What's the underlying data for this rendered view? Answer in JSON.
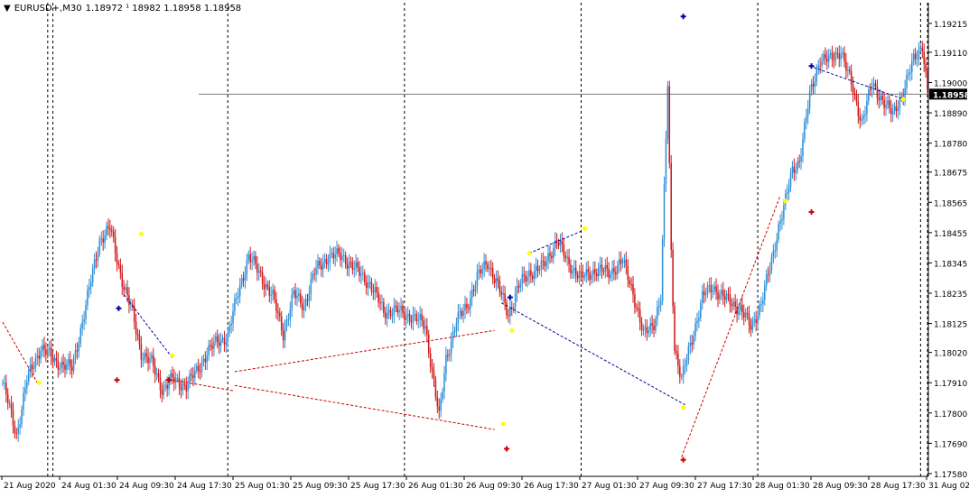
{
  "header": {
    "symbol_timeframe": "EURUSD+,M30",
    "ohlc": "1.18972 ¹ 18982 1.18958 1.18958"
  },
  "colors": {
    "bull": "#2f8fd8",
    "bear": "#d01818",
    "gridline": "#000000",
    "current_price_line": "#7a7a7a",
    "price_tag_bg": "#000000",
    "price_tag_text": "#ffffff",
    "signal_yellow": "#ffff00",
    "arrow_blue": "#0000a0",
    "arrow_red": "#cc0000"
  },
  "chart_data": {
    "type": "candlestick",
    "title": "EURUSD+,M30",
    "y_range": [
      1.1757,
      1.1929
    ],
    "y_ticks": [
      "1.19215",
      "1.19110",
      "1.19000",
      "1.18890",
      "1.18780",
      "1.18675",
      "1.18565",
      "1.18455",
      "1.18345",
      "1.18235",
      "1.18125",
      "1.18020",
      "1.17910",
      "1.17800",
      "1.17690",
      "1.17580"
    ],
    "current_price": "1.18958",
    "x_ticks": [
      "21 Aug 2020",
      "24 Aug 01:30",
      "24 Aug 09:30",
      "24 Aug 17:30",
      "25 Aug 01:30",
      "25 Aug 09:30",
      "25 Aug 17:30",
      "26 Aug 01:30",
      "26 Aug 09:30",
      "26 Aug 17:30",
      "27 Aug 01:30",
      "27 Aug 09:30",
      "27 Aug 17:30",
      "28 Aug 01:30",
      "28 Aug 09:30",
      "28 Aug 17:30",
      "31 Aug 02:"
    ],
    "anchors": [
      [
        0,
        1.1791
      ],
      [
        8,
        1.1772
      ],
      [
        14,
        1.1792
      ],
      [
        22,
        1.1804
      ],
      [
        30,
        1.1799
      ],
      [
        40,
        1.1796
      ],
      [
        48,
        1.1819
      ],
      [
        56,
        1.1843
      ],
      [
        62,
        1.1847
      ],
      [
        66,
        1.1836
      ],
      [
        70,
        1.1826
      ],
      [
        75,
        1.1816
      ],
      [
        80,
        1.1802
      ],
      [
        86,
        1.1798
      ],
      [
        92,
        1.1789
      ],
      [
        98,
        1.1792
      ],
      [
        106,
        1.179
      ],
      [
        112,
        1.1795
      ],
      [
        118,
        1.1802
      ],
      [
        124,
        1.1806
      ],
      [
        130,
        1.1808
      ],
      [
        136,
        1.1824
      ],
      [
        142,
        1.1837
      ],
      [
        148,
        1.1831
      ],
      [
        156,
        1.1822
      ],
      [
        162,
        1.1809
      ],
      [
        168,
        1.1823
      ],
      [
        174,
        1.1819
      ],
      [
        180,
        1.1831
      ],
      [
        188,
        1.1837
      ],
      [
        196,
        1.1837
      ],
      [
        204,
        1.1832
      ],
      [
        212,
        1.1827
      ],
      [
        220,
        1.1817
      ],
      [
        228,
        1.1817
      ],
      [
        236,
        1.1815
      ],
      [
        244,
        1.1812
      ],
      [
        248,
        1.1795
      ],
      [
        252,
        1.1778
      ],
      [
        256,
        1.18
      ],
      [
        262,
        1.1813
      ],
      [
        268,
        1.1819
      ],
      [
        274,
        1.1829
      ],
      [
        280,
        1.1835
      ],
      [
        286,
        1.1826
      ],
      [
        292,
        1.1816
      ],
      [
        298,
        1.1826
      ],
      [
        304,
        1.1831
      ],
      [
        312,
        1.1833
      ],
      [
        320,
        1.1843
      ],
      [
        326,
        1.1835
      ],
      [
        334,
        1.1829
      ],
      [
        342,
        1.1832
      ],
      [
        350,
        1.1831
      ],
      [
        358,
        1.1835
      ],
      [
        364,
        1.1824
      ],
      [
        370,
        1.1808
      ],
      [
        376,
        1.1813
      ],
      [
        380,
        1.1822
      ],
      [
        384,
        1.1899
      ],
      [
        386,
        1.1839
      ],
      [
        388,
        1.1804
      ],
      [
        392,
        1.1792
      ],
      [
        398,
        1.1807
      ],
      [
        404,
        1.1822
      ],
      [
        410,
        1.1826
      ],
      [
        418,
        1.1821
      ],
      [
        426,
        1.1818
      ],
      [
        432,
        1.1811
      ],
      [
        438,
        1.182
      ],
      [
        444,
        1.1835
      ],
      [
        448,
        1.1848
      ],
      [
        452,
        1.1857
      ],
      [
        456,
        1.1868
      ],
      [
        460,
        1.1872
      ],
      [
        466,
        1.1895
      ],
      [
        472,
        1.1909
      ],
      [
        478,
        1.1908
      ],
      [
        484,
        1.1912
      ],
      [
        490,
        1.1899
      ],
      [
        496,
        1.1886
      ],
      [
        502,
        1.1899
      ],
      [
        508,
        1.1894
      ],
      [
        514,
        1.1888
      ],
      [
        520,
        1.1897
      ],
      [
        526,
        1.1908
      ],
      [
        531,
        1.1914
      ],
      [
        534,
        1.1897
      ]
    ],
    "zigzag_lines": [
      {
        "color": "red",
        "points": [
          [
            0,
            1.1813
          ],
          [
            20,
            1.1791
          ]
        ]
      },
      {
        "color": "blue",
        "points": [
          [
            70,
            1.1823
          ],
          [
            98,
            1.18
          ]
        ]
      },
      {
        "color": "red",
        "points": [
          [
            98,
            1.1792
          ],
          [
            134,
            1.1788
          ]
        ]
      },
      {
        "color": "red",
        "points": [
          [
            134,
            1.1795
          ],
          [
            284,
            1.181
          ]
        ]
      },
      {
        "color": "red",
        "points": [
          [
            134,
            1.179
          ],
          [
            284,
            1.1774
          ]
        ]
      },
      {
        "color": "blue",
        "points": [
          [
            288,
            1.182
          ],
          [
            394,
            1.1783
          ]
        ]
      },
      {
        "color": "blue",
        "points": [
          [
            304,
            1.1838
          ],
          [
            334,
            1.1846
          ]
        ]
      },
      {
        "color": "red",
        "points": [
          [
            392,
            1.1764
          ],
          [
            449,
            1.1859
          ]
        ]
      },
      {
        "color": "blue",
        "points": [
          [
            466,
            1.1906
          ],
          [
            520,
            1.1894
          ]
        ]
      }
    ],
    "markers": [
      {
        "shape": "cross",
        "color": "blue",
        "x": 67,
        "y": 1.1818
      },
      {
        "shape": "cross",
        "color": "red",
        "x": 66,
        "y": 1.1792
      },
      {
        "shape": "cross",
        "color": "red",
        "x": 96,
        "y": 1.1792
      },
      {
        "shape": "cross",
        "color": "blue",
        "x": 293,
        "y": 1.1822
      },
      {
        "shape": "cross",
        "color": "red",
        "x": 291,
        "y": 1.1767
      },
      {
        "shape": "cross",
        "color": "blue",
        "x": 393,
        "y": 1.1924
      },
      {
        "shape": "cross",
        "color": "red",
        "x": 393,
        "y": 1.1763
      },
      {
        "shape": "cross",
        "color": "blue",
        "x": 467,
        "y": 1.1906
      },
      {
        "shape": "cross",
        "color": "red",
        "x": 467,
        "y": 1.1853
      },
      {
        "shape": "diamond",
        "color": "yellow",
        "x": 21,
        "y": 1.1791
      },
      {
        "shape": "diamond",
        "color": "yellow",
        "x": 80,
        "y": 1.1845
      },
      {
        "shape": "diamond",
        "color": "yellow",
        "x": 98,
        "y": 1.1801
      },
      {
        "shape": "diamond",
        "color": "yellow",
        "x": 289,
        "y": 1.1776
      },
      {
        "shape": "diamond",
        "color": "yellow",
        "x": 294,
        "y": 1.181
      },
      {
        "shape": "diamond",
        "color": "yellow",
        "x": 304,
        "y": 1.1838
      },
      {
        "shape": "diamond",
        "color": "yellow",
        "x": 336,
        "y": 1.1847
      },
      {
        "shape": "diamond",
        "color": "yellow",
        "x": 393,
        "y": 1.1782
      },
      {
        "shape": "diamond",
        "color": "yellow",
        "x": 452,
        "y": 1.1857
      },
      {
        "shape": "diamond",
        "color": "yellow",
        "x": 520,
        "y": 1.1894
      }
    ],
    "period_separators": [
      26,
      29,
      130,
      232,
      334,
      436,
      530,
      534
    ],
    "grid": false,
    "legend": "none"
  }
}
